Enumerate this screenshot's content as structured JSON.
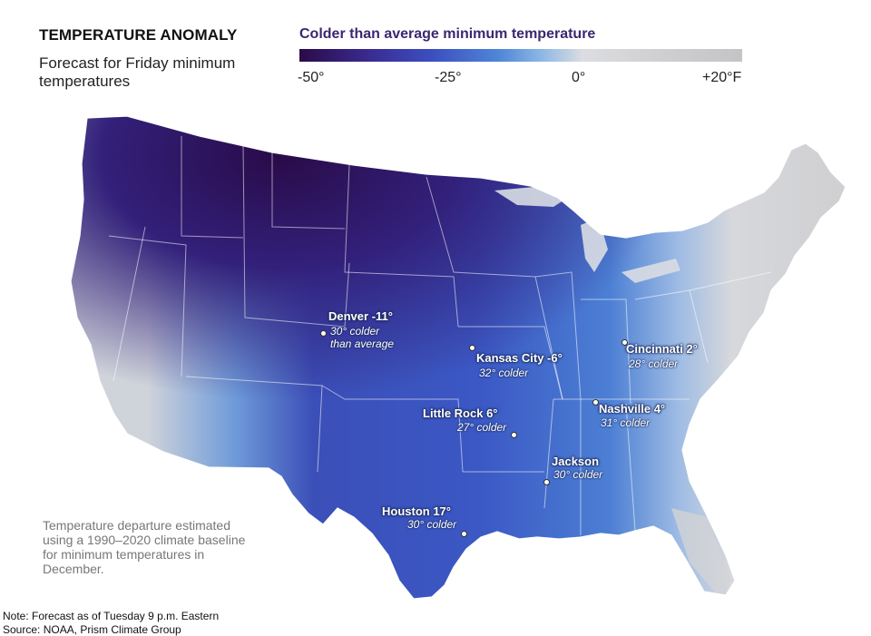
{
  "header": {
    "title": "TEMPERATURE ANOMALY",
    "subtitle": "Forecast for Friday minimum temperatures"
  },
  "legend": {
    "title": "Colder than average minimum temperature",
    "ticks": [
      "-50°",
      "-25°",
      "0°",
      "+20°F"
    ],
    "colors": {
      "very_cold": "#2a0b49",
      "cold": "#3c4fc0",
      "mild_cold": "#8fb8e6",
      "neutral": "#dcdde1",
      "warmer": "#c4c4c6"
    }
  },
  "cities": [
    {
      "name": "Denver -11°",
      "note_line1": "30° colder",
      "note_line2": "than average"
    },
    {
      "name": "Kansas City -6°",
      "note_line1": "32° colder"
    },
    {
      "name": "Cincinnati 2°",
      "note_line1": "28° colder"
    },
    {
      "name": "Little Rock 6°",
      "note_line1": "27° colder"
    },
    {
      "name": "Nashville 4°",
      "note_line1": "31° colder"
    },
    {
      "name": "Jackson",
      "note_line1": "30° colder"
    },
    {
      "name": "Houston 17°",
      "note_line1": "30° colder"
    }
  ],
  "notes": {
    "baseline": "Temperature departure estimated using a 1990–2020 climate baseline for minimum temperatures in December.",
    "forecast": "Note: Forecast as of Tuesday 9 p.m. Eastern",
    "source": "Source: NOAA, Prism Climate Group"
  }
}
